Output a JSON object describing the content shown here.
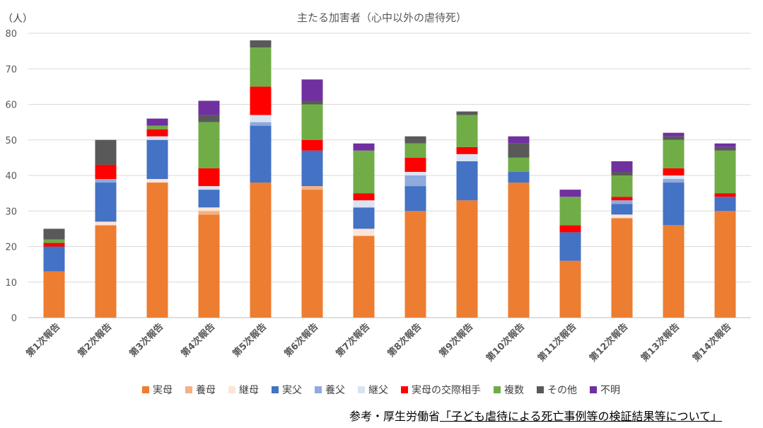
{
  "chart_data": {
    "type": "bar",
    "stacked": true,
    "title": "主たる加害者（心中以外の虐待死）",
    "ylabel": "（人）",
    "ylim": [
      0,
      80
    ],
    "yticks": [
      0,
      10,
      20,
      30,
      40,
      50,
      60,
      70,
      80
    ],
    "grid": true,
    "legend_position": "bottom",
    "categories": [
      "第1次報告",
      "第2次報告",
      "第3次報告",
      "第4次報告",
      "第5次報告",
      "第6次報告",
      "第7次報告",
      "第8次報告",
      "第9次報告",
      "第10次報告",
      "第11次報告",
      "第12次報告",
      "第13次報告",
      "第14次報告"
    ],
    "series": [
      {
        "name": "実母",
        "color": "#ED7D31",
        "values": [
          13,
          26,
          38,
          29,
          38,
          36,
          23,
          30,
          33,
          38,
          16,
          28,
          26,
          30
        ]
      },
      {
        "name": "養母",
        "color": "#F4B183",
        "values": [
          0,
          0,
          0,
          1,
          0,
          1,
          0,
          0,
          0,
          0,
          0,
          0,
          0,
          0
        ]
      },
      {
        "name": "継母",
        "color": "#FBE5D6",
        "values": [
          0,
          1,
          1,
          1,
          0,
          0,
          2,
          0,
          0,
          0,
          0,
          1,
          0,
          0
        ]
      },
      {
        "name": "実父",
        "color": "#4472C4",
        "values": [
          7,
          11,
          11,
          5,
          16,
          10,
          6,
          7,
          11,
          3,
          8,
          3,
          12,
          4
        ]
      },
      {
        "name": "養父",
        "color": "#8FAADC",
        "values": [
          0,
          1,
          0,
          0,
          1,
          0,
          0,
          3,
          0,
          0,
          0,
          1,
          1,
          0
        ]
      },
      {
        "name": "継父",
        "color": "#DAE3F3",
        "values": [
          0,
          0,
          1,
          1,
          2,
          0,
          2,
          1,
          2,
          0,
          0,
          0,
          1,
          0
        ]
      },
      {
        "name": "実母の交際相手",
        "color": "#FF0000",
        "values": [
          1,
          4,
          2,
          5,
          8,
          3,
          2,
          4,
          2,
          0,
          2,
          1,
          2,
          1
        ]
      },
      {
        "name": "複数",
        "color": "#70AD47",
        "values": [
          1,
          0,
          1,
          13,
          11,
          10,
          12,
          4,
          9,
          4,
          8,
          6,
          8,
          12
        ]
      },
      {
        "name": "その他",
        "color": "#595959",
        "values": [
          3,
          7,
          0,
          2,
          2,
          1,
          0,
          2,
          1,
          4,
          0,
          1,
          1,
          1
        ]
      },
      {
        "name": "不明",
        "color": "#7030A0",
        "values": [
          0,
          0,
          2,
          4,
          0,
          6,
          2,
          0,
          0,
          2,
          2,
          3,
          1,
          1
        ]
      }
    ]
  },
  "source": {
    "prefix": "参考・厚生労働省",
    "link_text": "「子ども虐待による死亡事例等の検証結果等について」"
  }
}
